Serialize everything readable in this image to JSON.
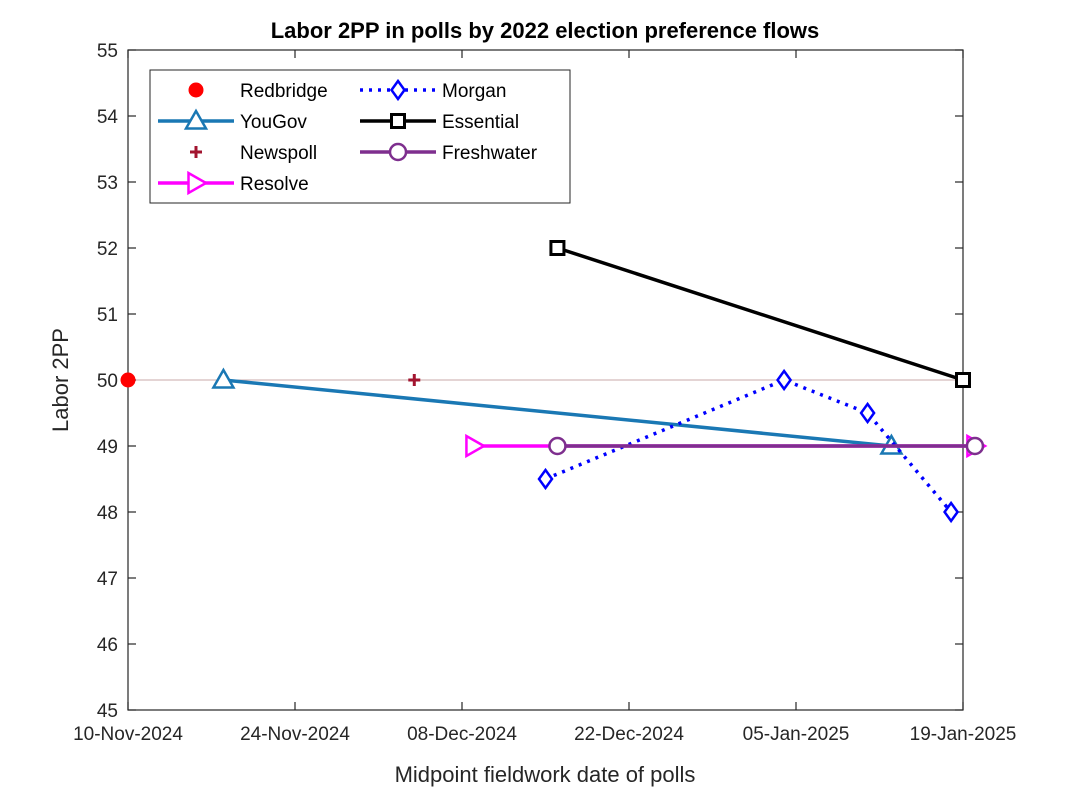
{
  "chart_data": {
    "type": "line",
    "title": "Labor 2PP in polls by 2022 election preference flows",
    "xlabel": "Midpoint fieldwork date of polls",
    "ylabel": "Labor 2PP",
    "x_type": "date",
    "xlim": [
      "2024-11-10",
      "2025-01-19"
    ],
    "ylim": [
      45,
      55
    ],
    "x_ticks": [
      {
        "date": "2024-11-10",
        "label": "10-Nov-2024"
      },
      {
        "date": "2024-11-24",
        "label": "24-Nov-2024"
      },
      {
        "date": "2024-12-08",
        "label": "08-Dec-2024"
      },
      {
        "date": "2024-12-22",
        "label": "22-Dec-2024"
      },
      {
        "date": "2025-01-05",
        "label": "05-Jan-2025"
      },
      {
        "date": "2025-01-19",
        "label": "19-Jan-2025"
      }
    ],
    "y_ticks": [
      45,
      46,
      47,
      48,
      49,
      50,
      51,
      52,
      53,
      54,
      55
    ],
    "grid": false,
    "reference_line": {
      "y": 50,
      "color": "#c8a8a8"
    },
    "legend_position": "top-left",
    "series": [
      {
        "name": "Redbridge",
        "color": "#ff0000",
        "marker": "filled-circle",
        "line": "none",
        "points": [
          {
            "x": "2024-11-10",
            "y": 50
          }
        ]
      },
      {
        "name": "YouGov",
        "color": "#1a78b4",
        "marker": "triangle",
        "line": "solid",
        "points": [
          {
            "x": "2024-11-18",
            "y": 50
          },
          {
            "x": "2025-01-13",
            "y": 49
          }
        ]
      },
      {
        "name": "Newspoll",
        "color": "#a2142f",
        "marker": "plus",
        "line": "none",
        "points": [
          {
            "x": "2024-12-04",
            "y": 50
          }
        ]
      },
      {
        "name": "Resolve",
        "color": "#ff00ff",
        "marker": "triangle-right",
        "line": "solid",
        "points": [
          {
            "x": "2024-12-09",
            "y": 49
          },
          {
            "x": "2025-01-20",
            "y": 49
          }
        ]
      },
      {
        "name": "Morgan",
        "color": "#0000ff",
        "marker": "diamond",
        "line": "dotted",
        "points": [
          {
            "x": "2024-12-15",
            "y": 48.5
          },
          {
            "x": "2025-01-04",
            "y": 50
          },
          {
            "x": "2025-01-11",
            "y": 49.5
          },
          {
            "x": "2025-01-18",
            "y": 48
          }
        ]
      },
      {
        "name": "Essential",
        "color": "#000000",
        "marker": "square",
        "line": "solid",
        "points": [
          {
            "x": "2024-12-16",
            "y": 52
          },
          {
            "x": "2025-01-19",
            "y": 50
          }
        ]
      },
      {
        "name": "Freshwater",
        "color": "#7e2f8e",
        "marker": "circle",
        "line": "solid",
        "points": [
          {
            "x": "2024-12-16",
            "y": 49
          },
          {
            "x": "2025-01-20",
            "y": 49
          }
        ]
      }
    ],
    "legend_order": [
      "Redbridge",
      "Morgan",
      "YouGov",
      "Essential",
      "Newspoll",
      "Freshwater",
      "Resolve"
    ]
  }
}
